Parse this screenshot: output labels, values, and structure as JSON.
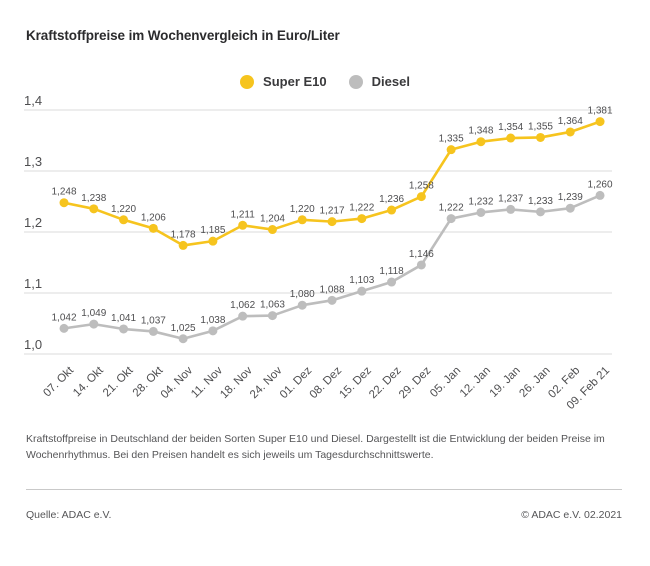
{
  "title": "Kraftstoffpreise im Wochenvergleich in Euro/Liter",
  "colors": {
    "grid": "#dbdbdb",
    "axis_text": "#4e4e50",
    "label_text": "#4e4e50",
    "title_text": "#2b2b2d",
    "footer_text": "#555557",
    "super_e10": "#f6c41e",
    "diesel": "#bdbdbd"
  },
  "chart_data": {
    "type": "line",
    "title": "Kraftstoffpreise im Wochenvergleich in Euro/Liter",
    "xlabel": "",
    "ylabel": "Euro/Liter",
    "grid": true,
    "legend_position": "top-center",
    "categories": [
      "07. Okt",
      "14. Okt",
      "21. Okt",
      "28. Okt",
      "04. Nov",
      "11. Nov",
      "18. Nov",
      "24. Nov",
      "01. Dez",
      "08. Dez",
      "15. Dez",
      "22. Dez",
      "29. Dez",
      "05. Jan",
      "12. Jan",
      "19. Jan",
      "26. Jan",
      "02. Feb",
      "09. Feb 21"
    ],
    "y_axis": {
      "min": 1.0,
      "max": 1.4,
      "ticks": [
        {
          "label": "1,4",
          "value": 1.4
        },
        {
          "label": "1,3",
          "value": 1.3
        },
        {
          "label": "1,2",
          "value": 1.2
        },
        {
          "label": "1,1",
          "value": 1.1
        },
        {
          "label": "1,0",
          "value": 1.0
        }
      ]
    },
    "series": [
      {
        "id": "diesel",
        "name": "Diesel",
        "color": "#bdbdbd",
        "values": [
          1.042,
          1.049,
          1.041,
          1.037,
          1.025,
          1.038,
          1.062,
          1.063,
          1.08,
          1.088,
          1.103,
          1.118,
          1.146,
          1.222,
          1.232,
          1.237,
          1.233,
          1.239,
          1.26
        ],
        "labels": [
          "1,042",
          "1,049",
          "1,041",
          "1,037",
          "1,025",
          "1,038",
          "1,062",
          "1,063",
          "1,080",
          "1,088",
          "1,103",
          "1,118",
          "1,146",
          "1,222",
          "1,232",
          "1,237",
          "1,233",
          "1,239",
          "1,260"
        ]
      },
      {
        "id": "super-e10",
        "name": "Super E10",
        "color": "#f6c41e",
        "values": [
          1.248,
          1.238,
          1.22,
          1.206,
          1.178,
          1.185,
          1.211,
          1.204,
          1.22,
          1.217,
          1.222,
          1.236,
          1.258,
          1.335,
          1.348,
          1.354,
          1.355,
          1.364,
          1.381
        ],
        "labels": [
          "1,248",
          "1,238",
          "1,220",
          "1,206",
          "1,178",
          "1,185",
          "1,211",
          "1,204",
          "1,220",
          "1,217",
          "1,222",
          "1,236",
          "1,258",
          "1,335",
          "1,348",
          "1,354",
          "1,355",
          "1,364",
          "1,381"
        ]
      }
    ],
    "legend_order": [
      "super-e10",
      "diesel"
    ]
  },
  "footer": {
    "description": "Kraftstoffpreise in Deutschland der beiden Sorten Super E10 und Diesel. Dargestellt ist die Entwicklung der beiden Preise im Wochenrhythmus. Bei den Preisen handelt es sich jeweils um Tagesdurchschnittswerte.",
    "source": "Quelle: ADAC e.V.",
    "copyright": "© ADAC e.V. 02.2021"
  }
}
